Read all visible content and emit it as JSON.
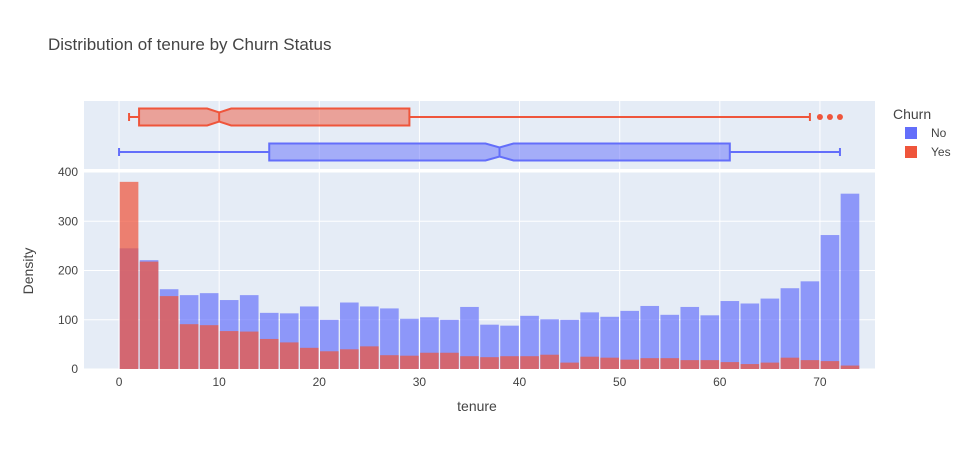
{
  "colors": {
    "no": "#636efa",
    "yes": "#ef553b",
    "plot_bg": "#e5ecf6",
    "grid": "#ffffff"
  },
  "chart_data": {
    "type": "bar",
    "title": "Distribution of tenure by Churn Status",
    "xlabel": "tenure",
    "ylabel": "Density",
    "xlim": [
      -3.5,
      75.5
    ],
    "ylim": [
      0,
      400
    ],
    "x_ticks": [
      0,
      10,
      20,
      30,
      40,
      50,
      60,
      70
    ],
    "y_ticks": [
      0,
      100,
      200,
      300,
      400
    ],
    "grid": true,
    "barmode": "overlay",
    "bin_start": 0,
    "bin_size": 2,
    "legend": {
      "title": "Churn",
      "placement": "top-right",
      "entries": [
        "No",
        "Yes"
      ]
    },
    "series": [
      {
        "name": "No",
        "color": "#636efa",
        "values": [
          245,
          221,
          162,
          150,
          154,
          140,
          150,
          114,
          113,
          127,
          100,
          135,
          127,
          123,
          102,
          105,
          100,
          126,
          90,
          88,
          108,
          101,
          100,
          115,
          106,
          118,
          128,
          110,
          126,
          109,
          138,
          133,
          143,
          164,
          178,
          272,
          356
        ]
      },
      {
        "name": "Yes",
        "color": "#ef553b",
        "values": [
          380,
          218,
          148,
          91,
          89,
          77,
          76,
          61,
          54,
          43,
          36,
          40,
          46,
          28,
          27,
          33,
          33,
          26,
          24,
          26,
          26,
          29,
          13,
          25,
          23,
          19,
          22,
          22,
          18,
          18,
          14,
          10,
          13,
          23,
          18,
          16,
          7
        ]
      }
    ],
    "marginal_box": [
      {
        "name": "No",
        "min": 0,
        "q1": 15,
        "median": 38,
        "q3": 61,
        "max": 72,
        "notch_low": 36.6,
        "notch_high": 39.4,
        "outliers": []
      },
      {
        "name": "Yes",
        "min": 1,
        "q1": 2,
        "median": 10,
        "q3": 29,
        "max": 69,
        "notch_low": 8.8,
        "notch_high": 11.2,
        "outliers": [
          70,
          71,
          72
        ]
      }
    ]
  }
}
